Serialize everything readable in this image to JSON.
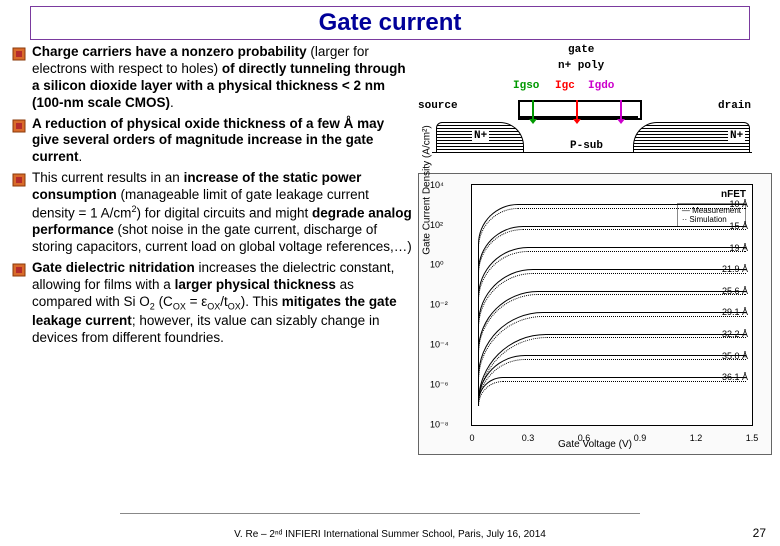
{
  "title": "Gate current",
  "bullets": [
    {
      "html": "<span class='bold'>Charge carriers have a nonzero probability</span> (larger for electrons with respect to holes) <span class='bold'>of directly tunneling through a silicon dioxide layer with a physical thickness &lt; 2 nm (100-nm scale CMOS)</span>."
    },
    {
      "html": "<span class='bold'>A reduction of physical oxide thickness of a few Å may give several orders of magnitude increase in the gate current</span>."
    },
    {
      "html": "This current results in an <span class='bold'>increase of the static power consumption</span> (manageable limit of gate leakage current density = 1 A/cm<span class='sup'>2</span>) for digital circuits and might <span class='bold'>degrade analog performance</span> (shot noise in the gate current, discharge of storing capacitors, current load on global voltage references,…)"
    },
    {
      "html": "<span class='bold'>Gate dielectric nitridation</span> increases the dielectric constant, allowing for films with a <span class='bold'>larger physical thickness</span> as compared with Si O<span class='sub'>2</span> (C<span class='sub'>OX</span> = ε<span class='sub'>OX</span>/t<span class='sub'>OX</span>). This <span class='bold'>mitigates the gate leakage current</span>; however, its value can sizably change in devices from different foundries."
    }
  ],
  "diagram": {
    "labels": {
      "gate": "gate",
      "npoly": "n+ poly",
      "source": "source",
      "drain": "drain",
      "psub": "P-sub",
      "nplus": "N+",
      "igso": {
        "text": "Igso",
        "color": "#009900"
      },
      "igc": {
        "text": "Igc",
        "color": "#ff0000"
      },
      "igdo": {
        "text": "Igdo",
        "color": "#cc00cc"
      }
    },
    "colors": {
      "igso": "#009900",
      "igc": "#ff0000",
      "igdo": "#cc00cc"
    }
  },
  "chart": {
    "title": "nFET",
    "legend": [
      "Measurement",
      "Simulation"
    ],
    "ylabel": "Gate Current Density (A/cm²)",
    "xlabel": "Gate Voltage (V)",
    "yticks": [
      "10⁴",
      "10²",
      "10⁰",
      "10⁻²",
      "10⁻⁴",
      "10⁻⁶",
      "10⁻⁸"
    ],
    "xticks": [
      "0",
      "0.3",
      "0.6",
      "0.9",
      "1.2",
      "1.5"
    ],
    "curve_labels": [
      "10 Å",
      "15 Å",
      "19 Å",
      "21.9 Å",
      "25.6 Å",
      "29.1 Å",
      "32.2 Å",
      "35.0 Å",
      "36.1 Å"
    ],
    "ylim": [
      1e-08,
      10000.0
    ],
    "xlim": [
      0,
      1.5
    ],
    "line_color": "#000000",
    "background_color": "#ffffff"
  },
  "footer": "V. Re – 2ⁿᵈ INFIERI International Summer School, Paris, July 16, 2014",
  "pagenum": "27"
}
